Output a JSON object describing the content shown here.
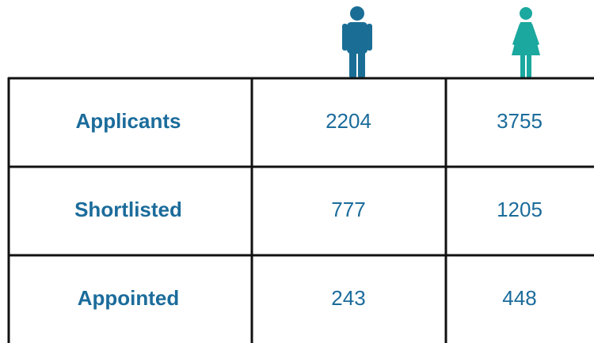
{
  "table": {
    "rows": [
      [
        "Applicants",
        2204,
        3755
      ],
      [
        "Shortlisted",
        777,
        1205
      ],
      [
        "Appointed",
        243,
        448
      ]
    ]
  }
}
